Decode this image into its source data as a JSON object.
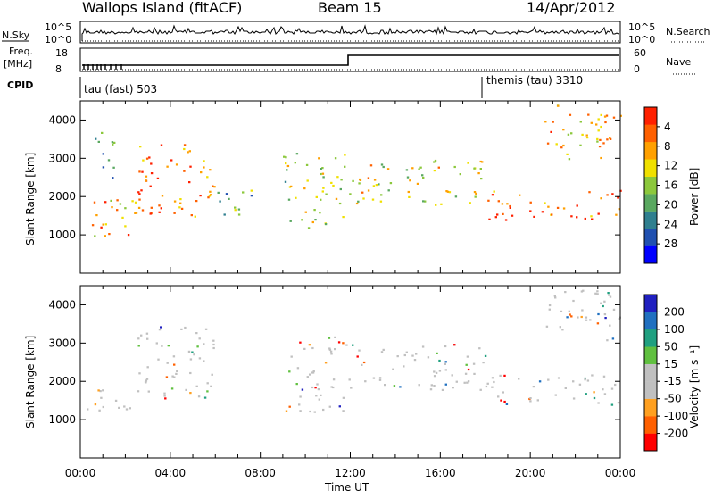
{
  "header": {
    "site": "Wallops Island (fitACF)",
    "beam": "Beam 15",
    "date": "14/Apr/2012"
  },
  "strips": {
    "nsky_label": "N.Sky",
    "nsearch_label": "N.Search",
    "freq_label_1": "Freq.",
    "freq_label_2": "[MHz]",
    "nave_label": "Nave",
    "cpid_label": "CPID",
    "nsky_ticks": [
      "10^5",
      "10^0"
    ],
    "nsearch_ticks": [
      "10^5",
      "10^0"
    ],
    "freq_ticks": [
      "18",
      "8"
    ],
    "nave_ticks": [
      "60",
      "0"
    ],
    "cpid_segments": [
      {
        "label": "tau (fast) 503",
        "start_hour": 0
      },
      {
        "label": "themis (tau) 3310",
        "start_hour": 18
      }
    ]
  },
  "chart_data": [
    {
      "type": "heatmap",
      "title": "",
      "xlabel": "Time UT",
      "ylabel": "Slant Range [km]",
      "xlim": [
        0,
        24
      ],
      "ylim": [
        0,
        4500
      ],
      "x_ticks": [
        "00:00",
        "04:00",
        "08:00",
        "12:00",
        "16:00",
        "20:00",
        "00:00"
      ],
      "y_ticks": [
        1000,
        2000,
        3000,
        4000
      ],
      "colorbar": {
        "label": "Power [dB]",
        "range": [
          0,
          30
        ],
        "tick_labels": [
          "4",
          "8",
          "12",
          "16",
          "20",
          "24",
          "28"
        ],
        "colors": [
          "#0000ff",
          "#2050b0",
          "#2f7f8f",
          "#5aa860",
          "#8cc83c",
          "#f0e000",
          "#ffa000",
          "#ff6000",
          "#ff2000"
        ]
      },
      "echo_regions": [
        {
          "t_start": 0.0,
          "t_end": 2.5,
          "r_start": 900,
          "r_end": 2000,
          "level": 0.75
        },
        {
          "t_start": 0.5,
          "t_end": 1.5,
          "r_start": 2500,
          "r_end": 3800,
          "level": 0.35
        },
        {
          "t_start": 2.5,
          "t_end": 6.0,
          "r_start": 1500,
          "r_end": 3500,
          "level": 0.85
        },
        {
          "t_start": 6.0,
          "t_end": 8.0,
          "r_start": 1500,
          "r_end": 2200,
          "level": 0.35
        },
        {
          "t_start": 9.0,
          "t_end": 11.8,
          "r_start": 1200,
          "r_end": 3200,
          "level": 0.55
        },
        {
          "t_start": 11.9,
          "t_end": 18.0,
          "r_start": 1800,
          "r_end": 3000,
          "level": 0.6
        },
        {
          "t_start": 18.0,
          "t_end": 24.0,
          "r_start": 1400,
          "r_end": 2200,
          "level": 0.9
        },
        {
          "t_start": 20.5,
          "t_end": 24.0,
          "r_start": 3000,
          "r_end": 4400,
          "level": 0.7
        }
      ]
    },
    {
      "type": "heatmap",
      "title": "",
      "xlabel": "Time UT",
      "ylabel": "Slant Range [km]",
      "xlim": [
        0,
        24
      ],
      "ylim": [
        0,
        4500
      ],
      "x_ticks": [
        "00:00",
        "04:00",
        "08:00",
        "12:00",
        "16:00",
        "20:00",
        "00:00"
      ],
      "y_ticks": [
        1000,
        2000,
        3000,
        4000
      ],
      "colorbar": {
        "label": "Velocity [m s⁻¹]",
        "range": [
          -250,
          250
        ],
        "tick_labels": [
          "200",
          "100",
          "50",
          "15",
          "-15",
          "-50",
          "-100",
          "-200"
        ],
        "colors": [
          "#ff0000",
          "#ff6000",
          "#ffa020",
          "#c0c0c0",
          "#c0c0c0",
          "#60c040",
          "#20a080",
          "#2070c0",
          "#2020c0"
        ]
      },
      "echo_regions": [
        {
          "t_start": 0.0,
          "t_end": 2.5,
          "r_start": 1200,
          "r_end": 1800,
          "level": 0.5
        },
        {
          "t_start": 2.5,
          "t_end": 6.0,
          "r_start": 1500,
          "r_end": 3500,
          "level": 0.4
        },
        {
          "t_start": 9.0,
          "t_end": 11.8,
          "r_start": 1200,
          "r_end": 3200,
          "level": 0.5
        },
        {
          "t_start": 11.9,
          "t_end": 18.0,
          "r_start": 1800,
          "r_end": 3000,
          "level": 0.5
        },
        {
          "t_start": 18.0,
          "t_end": 24.0,
          "r_start": 1400,
          "r_end": 2200,
          "level": 0.5
        },
        {
          "t_start": 20.5,
          "t_end": 24.0,
          "r_start": 3000,
          "r_end": 4400,
          "level": 0.5
        }
      ]
    }
  ]
}
